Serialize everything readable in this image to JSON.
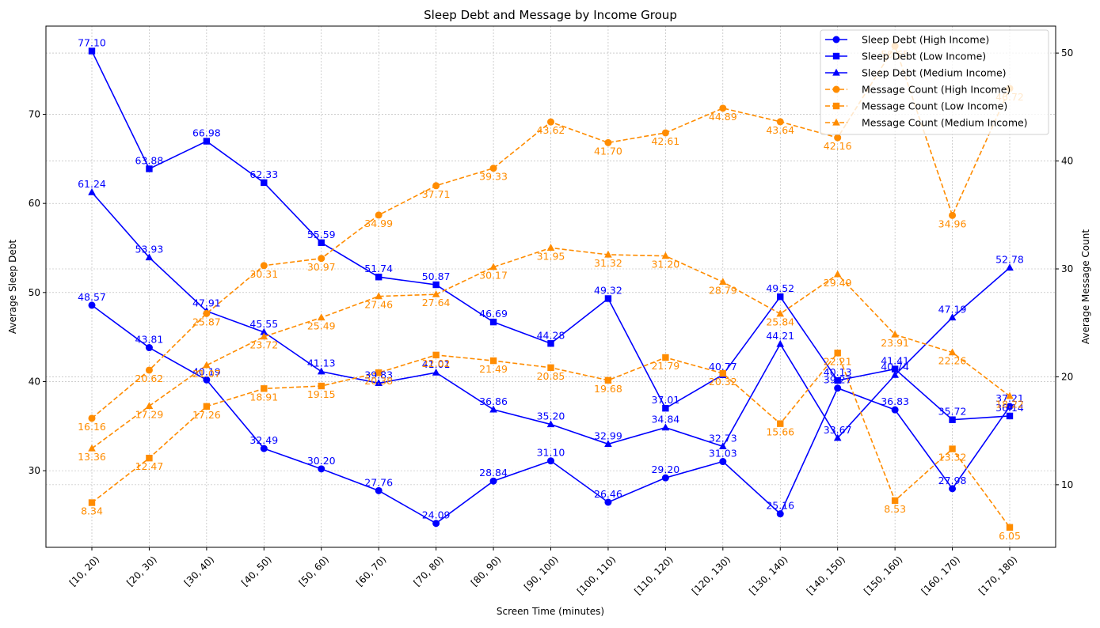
{
  "chart_data": {
    "type": "line",
    "title": "Sleep Debt and Message by Income Group",
    "xlabel": "Screen Time (minutes)",
    "ylabel": "Average Sleep Debt",
    "ylabel_right": "Average Message Count",
    "categories": [
      "[10, 20)",
      "[20, 30)",
      "[30, 40)",
      "[40, 50)",
      "[50, 60)",
      "[60, 70)",
      "[70, 80)",
      "[80, 90)",
      "[90, 100)",
      "[100, 110)",
      "[110, 120)",
      "[120, 130)",
      "[130, 140)",
      "[140, 150)",
      "[150, 160)",
      "[160, 170)",
      "[170, 180)"
    ],
    "ylim": [
      21.4,
      79.9
    ],
    "ylim_right": [
      4.2,
      52.5
    ],
    "yticks": [
      30,
      40,
      50,
      60,
      70
    ],
    "yticks_right": [
      10,
      20,
      30,
      40,
      50
    ],
    "grid": true,
    "legend_position": "top-right",
    "colors": {
      "sleep": "#0000ff",
      "message": "#ff8c00",
      "grid": "#b0b0b0"
    },
    "series": [
      {
        "name": "Sleep Debt (High Income)",
        "axis": "left",
        "marker": "circle",
        "dashed": false,
        "values": [
          48.57,
          43.81,
          40.19,
          32.49,
          30.2,
          27.76,
          24.09,
          28.84,
          31.1,
          26.46,
          29.2,
          31.03,
          25.16,
          39.27,
          36.83,
          27.98,
          37.21
        ]
      },
      {
        "name": "Sleep Debt (Low Income)",
        "axis": "left",
        "marker": "square",
        "dashed": false,
        "values": [
          77.1,
          63.88,
          66.98,
          62.33,
          55.59,
          51.74,
          50.87,
          46.69,
          44.28,
          49.32,
          37.01,
          40.77,
          49.52,
          40.13,
          41.41,
          35.72,
          36.14
        ]
      },
      {
        "name": "Sleep Debt (Medium Income)",
        "axis": "left",
        "marker": "triangle",
        "dashed": false,
        "values": [
          61.24,
          53.93,
          47.91,
          45.55,
          41.13,
          39.83,
          41.01,
          36.86,
          35.2,
          32.99,
          34.84,
          32.73,
          44.21,
          33.67,
          40.74,
          47.19,
          52.78
        ]
      },
      {
        "name": "Message Count (High Income)",
        "axis": "right",
        "marker": "circle",
        "dashed": true,
        "values": [
          16.16,
          20.62,
          25.87,
          30.31,
          30.97,
          34.99,
          37.71,
          39.33,
          43.62,
          41.7,
          42.61,
          44.89,
          43.64,
          42.16,
          50.65,
          34.96,
          46.72
        ]
      },
      {
        "name": "Message Count (Low Income)",
        "axis": "right",
        "marker": "square",
        "dashed": true,
        "values": [
          8.34,
          12.47,
          17.26,
          18.91,
          19.15,
          20.38,
          22.02,
          21.49,
          20.85,
          19.68,
          21.79,
          20.32,
          15.66,
          22.21,
          8.53,
          13.32,
          6.05
        ]
      },
      {
        "name": "Message Count (Medium Income)",
        "axis": "right",
        "marker": "triangle",
        "dashed": true,
        "values": [
          13.36,
          17.29,
          21.07,
          23.72,
          25.49,
          27.46,
          27.64,
          30.17,
          31.95,
          31.32,
          31.2,
          28.79,
          25.84,
          29.49,
          23.91,
          22.26,
          18.22
        ]
      }
    ]
  }
}
